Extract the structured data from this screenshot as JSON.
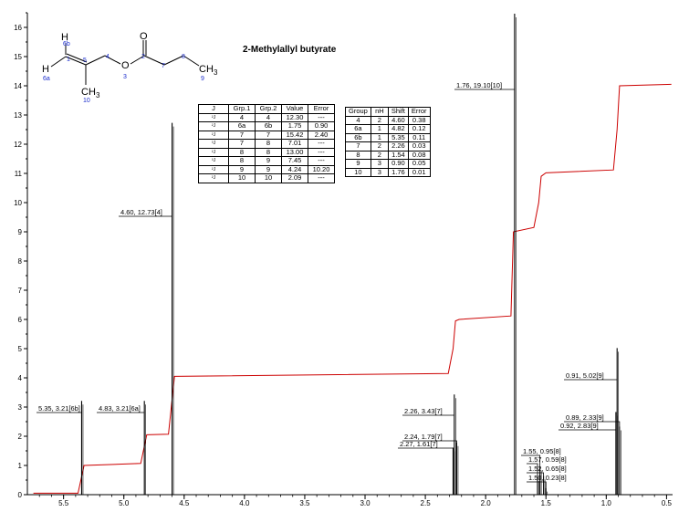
{
  "chart_data": {
    "type": "line",
    "title": "2-Methylallyl butyrate",
    "xlim": [
      5.8,
      0.45
    ],
    "ylim": [
      0,
      16.5
    ],
    "x_ticks": [
      "5.5",
      "5.0",
      "4.5",
      "4.0",
      "3.5",
      "3.0",
      "2.5",
      "2.0",
      "1.5",
      "1.0",
      "0.5"
    ],
    "y_ticks": [
      "0",
      "1",
      "2",
      "3",
      "4",
      "5",
      "6",
      "7",
      "8",
      "9",
      "10",
      "11",
      "12",
      "13",
      "14",
      "15",
      "16"
    ],
    "peaks": [
      {
        "label": "5.35, 3.21[6b]",
        "x": 5.35,
        "y": 3.21
      },
      {
        "label": "4.83, 3.21[6a]",
        "x": 4.83,
        "y": 3.21
      },
      {
        "label": "4.60, 12.73[4]",
        "x": 4.6,
        "y": 12.73
      },
      {
        "label": "2.26, 3.43[7]",
        "x": 2.26,
        "y": 3.43
      },
      {
        "label": "2.24, 1.79[7]",
        "x": 2.24,
        "y": 1.79
      },
      {
        "label": "2.27, 1.61[7]",
        "x": 2.27,
        "y": 1.61
      },
      {
        "label": "1.76, 19.10[10]",
        "x": 1.76,
        "y": 19.1
      },
      {
        "label": "1.55, 0.95[8]",
        "x": 1.55,
        "y": 0.95
      },
      {
        "label": "1.57, 0.59[8]",
        "x": 1.57,
        "y": 0.59
      },
      {
        "label": "1.52, 0.65[8]",
        "x": 1.52,
        "y": 0.65
      },
      {
        "label": "1.50, 0.23[8]",
        "x": 1.5,
        "y": 0.23
      },
      {
        "label": "0.91, 5.02[9]",
        "x": 0.91,
        "y": 5.02
      },
      {
        "label": "0.89, 2.33[9]",
        "x": 0.89,
        "y": 2.33
      },
      {
        "label": "0.92, 2.83[9]",
        "x": 0.92,
        "y": 2.83
      }
    ],
    "integral_curve": [
      [
        5.75,
        0.05
      ],
      [
        5.38,
        0.05
      ],
      [
        5.33,
        1.0
      ],
      [
        4.86,
        1.07
      ],
      [
        4.81,
        2.05
      ],
      [
        4.63,
        2.07
      ],
      [
        4.58,
        4.05
      ],
      [
        2.31,
        4.15
      ],
      [
        2.27,
        5.0
      ],
      [
        2.25,
        5.95
      ],
      [
        2.22,
        6.0
      ],
      [
        1.79,
        6.12
      ],
      [
        1.77,
        9.0
      ],
      [
        1.6,
        9.15
      ],
      [
        1.56,
        10.0
      ],
      [
        1.54,
        10.9
      ],
      [
        1.5,
        11.02
      ],
      [
        0.94,
        11.12
      ],
      [
        0.91,
        12.5
      ],
      [
        0.89,
        14.0
      ],
      [
        0.46,
        14.05
      ]
    ],
    "structure": {
      "atoms": {
        "h_top": "H",
        "h_left": "H",
        "o_carbonyl": "O",
        "o_ester": "O",
        "ch3_end": "CH",
        "ch3_end_sub": "3",
        "ch3_branch": "CH",
        "ch3_branch_sub": "3"
      },
      "numbers": {
        "n6b": "6b",
        "n6a": "6a",
        "n5": "5",
        "n4": "4",
        "n3": "3",
        "n2": "2",
        "n7": "7",
        "n8": "8",
        "n9": "9",
        "n10": "10",
        "n1": "1"
      }
    },
    "coupling_table": {
      "headers": [
        "J",
        "Grp.1",
        "Grp.2",
        "Value",
        "Error"
      ],
      "rows": [
        [
          "²J",
          "4",
          "4",
          "12.30",
          "---"
        ],
        [
          "²J",
          "6a",
          "6b",
          "1.75",
          "0.90"
        ],
        [
          "²J",
          "7",
          "7",
          "15.42",
          "2.40"
        ],
        [
          "³J",
          "7",
          "8",
          "7.01",
          "---"
        ],
        [
          "²J",
          "8",
          "8",
          "13.00",
          "---"
        ],
        [
          "³J",
          "8",
          "9",
          "7.45",
          "---"
        ],
        [
          "²J",
          "9",
          "9",
          "4.24",
          "10.20"
        ],
        [
          "²J",
          "10",
          "10",
          "2.09",
          "---"
        ]
      ]
    },
    "shift_table": {
      "headers": [
        "Group",
        "nH",
        "Shift",
        "Error"
      ],
      "rows": [
        [
          "4",
          "2",
          "4.60",
          "0.38"
        ],
        [
          "6a",
          "1",
          "4.82",
          "0.12"
        ],
        [
          "6b",
          "1",
          "5.35",
          "0.11"
        ],
        [
          "7",
          "2",
          "2.26",
          "0.03"
        ],
        [
          "8",
          "2",
          "1.54",
          "0.08"
        ],
        [
          "9",
          "3",
          "0.90",
          "0.05"
        ],
        [
          "10",
          "3",
          "1.76",
          "0.01"
        ]
      ]
    },
    "colors": {
      "spectrum": "#000000",
      "integral": "#cc0000",
      "atom_numbers": "#1a2ccc"
    }
  }
}
